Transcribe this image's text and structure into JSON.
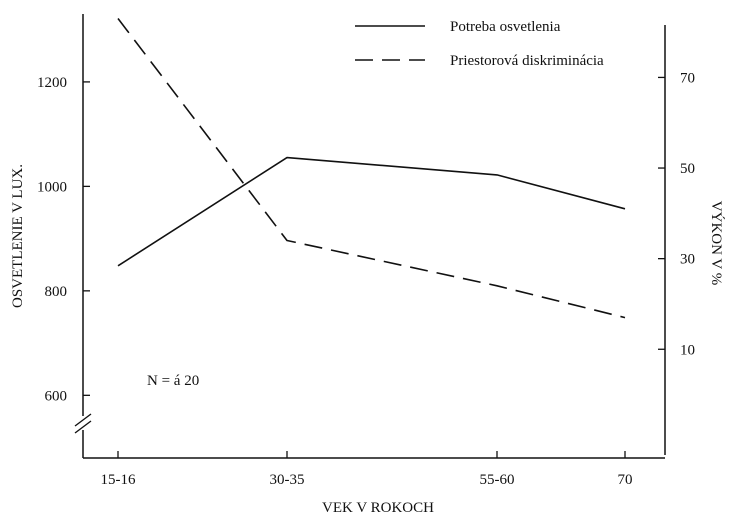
{
  "chart_data": {
    "type": "line",
    "categories": [
      "15-16",
      "30-35",
      "55-60",
      "70"
    ],
    "xlabel": "VEK V ROKOCH",
    "ylabel": "OSVETLENIE V LUX.",
    "y2label": "VÝKON V %",
    "yticks": [
      600,
      800,
      1000,
      1200
    ],
    "ylim": [
      480,
      1330
    ],
    "y2ticks": [
      10,
      30,
      50,
      70
    ],
    "y2lim": [
      -14,
      84
    ],
    "annotation": "N = á 20",
    "legend_position": "top-right",
    "axis_break": "left",
    "grid": false,
    "series": [
      {
        "name": "Potreba osvetlenia",
        "axis": "left",
        "style": "solid",
        "values": [
          848,
          1055,
          1022,
          957
        ]
      },
      {
        "name": "Priestorová diskriminácia",
        "axis": "right",
        "style": "dashed",
        "values": [
          83,
          34,
          24,
          17
        ]
      }
    ]
  }
}
